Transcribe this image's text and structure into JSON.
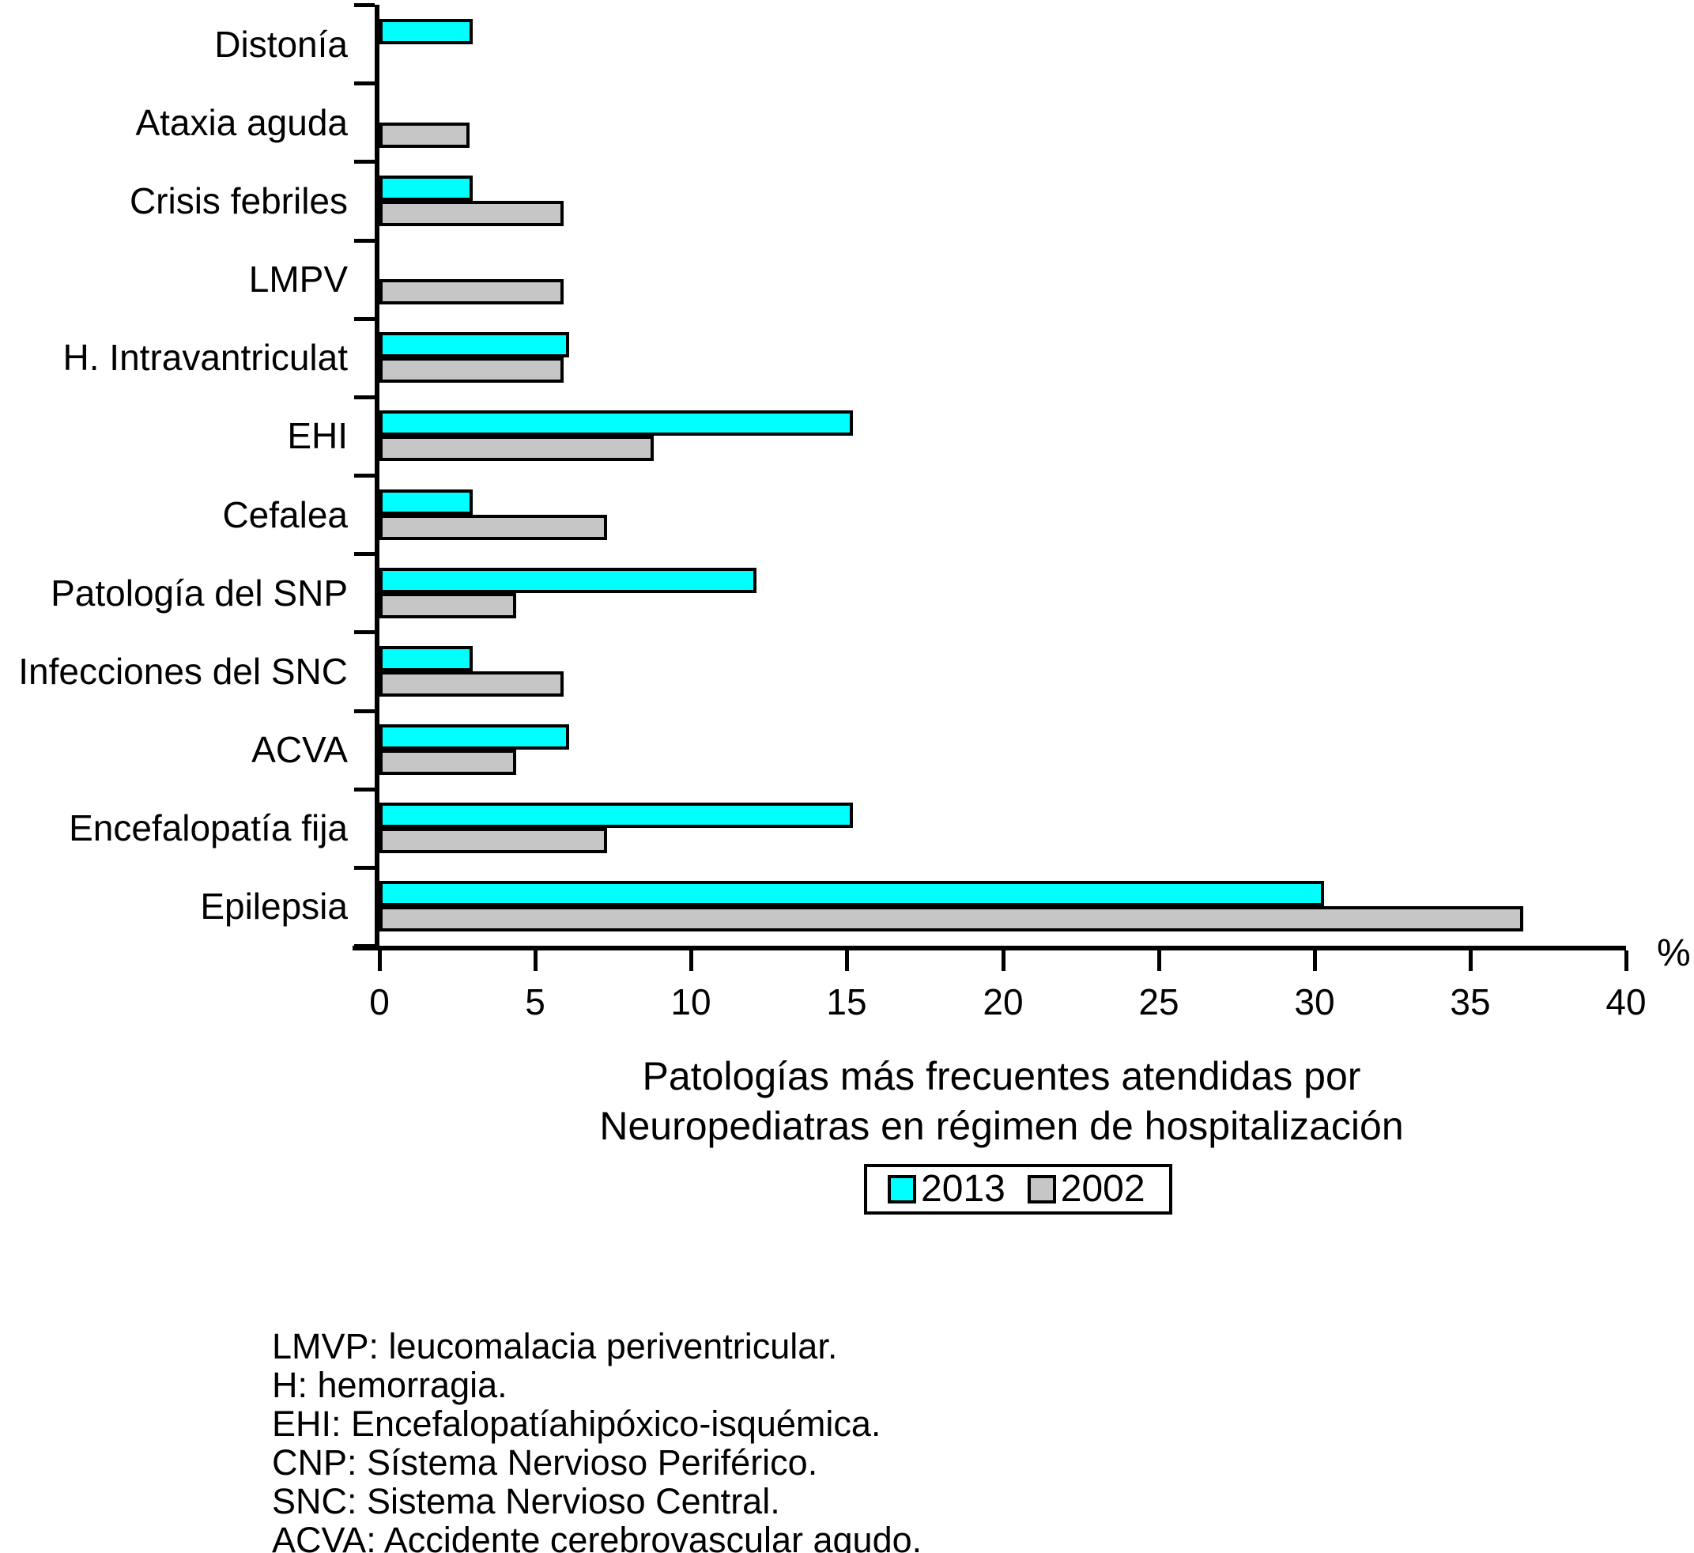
{
  "chart_data": {
    "type": "bar",
    "orientation": "horizontal",
    "title_lines": [
      "Patologías más frecuentes atendidas por",
      "Neuropediatras en régimen de hospitalización"
    ],
    "x_unit_label": "%",
    "xlim": [
      0,
      40
    ],
    "xticks": [
      0,
      5,
      10,
      15,
      20,
      25,
      30,
      35,
      40
    ],
    "categories": [
      "Distonía",
      "Ataxia aguda",
      "Crisis febriles",
      "LMPV",
      "H. Intravantriculat",
      "EHI",
      "Cefalea",
      "Patología del SNP",
      "Infecciones del SNC",
      "ACVA",
      "Encefalopatía fija",
      "Epilepsia"
    ],
    "series": [
      {
        "name": "2013",
        "color": "#00ffff",
        "values": [
          3,
          null,
          3,
          null,
          6.1,
          15.2,
          3,
          12.1,
          3,
          6.1,
          15.2,
          30.3
        ]
      },
      {
        "name": "2002",
        "color": "#c6c6c6",
        "values": [
          null,
          2.9,
          5.9,
          5.9,
          5.9,
          8.8,
          7.3,
          4.4,
          5.9,
          4.4,
          7.3,
          36.7
        ]
      }
    ],
    "legend": {
      "entries": [
        "2013",
        "2002"
      ],
      "position": "below-title"
    },
    "grid": false,
    "axis_color": "#000000",
    "background_color": "#ffffff"
  },
  "footnotes": [
    "LMVP: leucomalacia periventricular.",
    "H: hemorragia.",
    "EHI: Encefalopatíahipóxico-isquémica.",
    "CNP: Sístema Nervioso Periférico.",
    "SNC: Sistema Nervioso Central.",
    "ACVA: Accidente cerebrovascular agudo."
  ]
}
